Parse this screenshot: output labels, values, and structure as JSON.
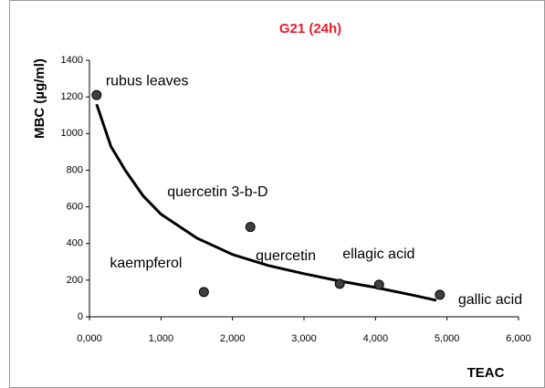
{
  "chart_data": {
    "type": "scatter",
    "title": "G21 (24h)",
    "title_color": "#e8202a",
    "xlabel": "TEAC",
    "ylabel": "MBC (µg/ml)",
    "xlim": [
      0,
      6
    ],
    "ylim": [
      0,
      1400
    ],
    "xticks": [
      {
        "value": 0,
        "label": "0,000"
      },
      {
        "value": 1,
        "label": "1,000"
      },
      {
        "value": 2,
        "label": "2,000"
      },
      {
        "value": 3,
        "label": "3,000"
      },
      {
        "value": 4,
        "label": "4,000"
      },
      {
        "value": 5,
        "label": "5,000"
      },
      {
        "value": 6,
        "label": "6,000"
      }
    ],
    "yticks": [
      0,
      200,
      400,
      600,
      800,
      1000,
      1200,
      1400
    ],
    "grid": false,
    "color": "#404040",
    "labels": [
      "rubus leaves",
      "quercetin 3-b-D",
      "kaempferol",
      "quercetin",
      "ellagic acid",
      "gallic acid"
    ],
    "x": [
      0.1,
      2.25,
      1.6,
      3.5,
      4.05,
      4.9
    ],
    "values": [
      1210,
      490,
      135,
      180,
      175,
      120
    ],
    "trend": {
      "color": "#000000",
      "x": [
        0.1,
        0.3,
        0.5,
        0.75,
        1.0,
        1.5,
        2.0,
        2.5,
        3.0,
        3.5,
        4.0,
        4.5,
        4.85
      ],
      "values": [
        1160,
        930,
        800,
        660,
        560,
        430,
        340,
        280,
        235,
        195,
        160,
        120,
        90
      ]
    }
  }
}
